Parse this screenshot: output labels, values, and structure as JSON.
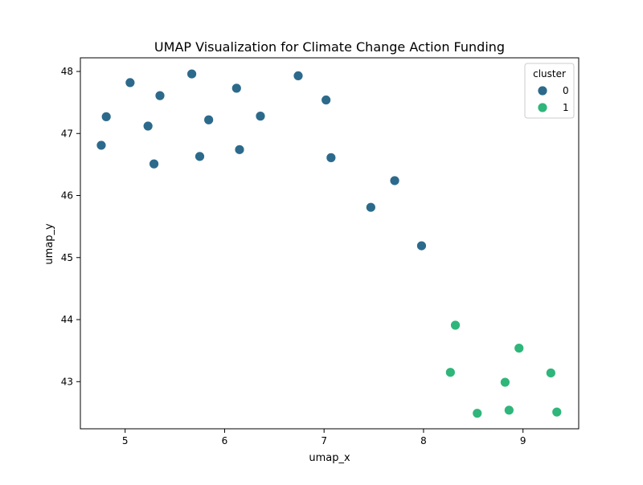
{
  "chart_data": {
    "type": "scatter",
    "title": "UMAP Visualization for Climate Change Action Funding",
    "xlabel": "umap_x",
    "ylabel": "umap_y",
    "xlim": [
      4.55,
      9.56
    ],
    "ylim": [
      42.24,
      48.22
    ],
    "xticks": [
      5,
      6,
      7,
      8,
      9
    ],
    "yticks": [
      43,
      44,
      45,
      46,
      47,
      48
    ],
    "grid": false,
    "legend": {
      "title": "cluster",
      "placement": "top-right",
      "entries": [
        {
          "label": "0",
          "color": "#2c6a8c"
        },
        {
          "label": "1",
          "color": "#2fb67a"
        }
      ]
    },
    "series": [
      {
        "name": "0",
        "color": "#2c6a8c",
        "points": [
          {
            "x": 4.76,
            "y": 46.81
          },
          {
            "x": 4.81,
            "y": 47.27
          },
          {
            "x": 5.05,
            "y": 47.82
          },
          {
            "x": 5.23,
            "y": 47.12
          },
          {
            "x": 5.29,
            "y": 46.51
          },
          {
            "x": 5.35,
            "y": 47.61
          },
          {
            "x": 5.67,
            "y": 47.96
          },
          {
            "x": 5.75,
            "y": 46.63
          },
          {
            "x": 5.84,
            "y": 47.22
          },
          {
            "x": 6.12,
            "y": 47.73
          },
          {
            "x": 6.15,
            "y": 46.74
          },
          {
            "x": 6.36,
            "y": 47.28
          },
          {
            "x": 6.74,
            "y": 47.93
          },
          {
            "x": 7.02,
            "y": 47.54
          },
          {
            "x": 7.07,
            "y": 46.61
          },
          {
            "x": 7.47,
            "y": 45.81
          },
          {
            "x": 7.71,
            "y": 46.24
          },
          {
            "x": 7.98,
            "y": 45.19
          }
        ]
      },
      {
        "name": "1",
        "color": "#2fb67a",
        "points": [
          {
            "x": 8.27,
            "y": 43.15
          },
          {
            "x": 8.32,
            "y": 43.91
          },
          {
            "x": 8.54,
            "y": 42.49
          },
          {
            "x": 8.82,
            "y": 42.99
          },
          {
            "x": 8.86,
            "y": 42.54
          },
          {
            "x": 8.96,
            "y": 43.54
          },
          {
            "x": 9.28,
            "y": 43.14
          },
          {
            "x": 9.34,
            "y": 42.51
          }
        ]
      }
    ]
  }
}
